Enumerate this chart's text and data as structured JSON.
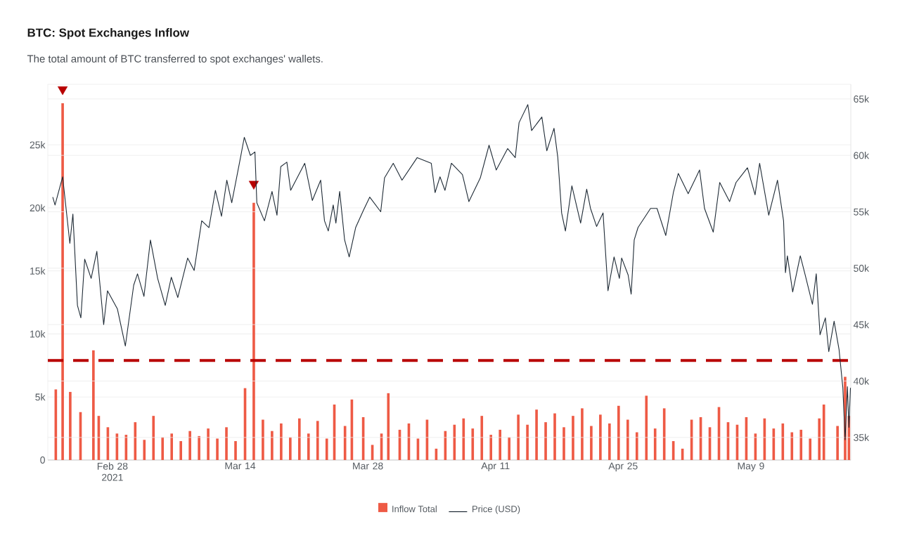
{
  "chart_data": {
    "type": "line",
    "title": "BTC: Spot Exchanges Inflow",
    "subtitle": "The total amount of BTC transferred to spot exchanges' wallets.",
    "xlim": [
      "2021-02-20T22:00",
      "2021-05-19T23:00"
    ],
    "xticks": [
      {
        "value": "2021-02-28T00:00",
        "label": "Feb 28 2021"
      },
      {
        "value": "2021-03-14T00:00",
        "label": "Mar 14"
      },
      {
        "value": "2021-03-28T00:00",
        "label": "Mar 28"
      },
      {
        "value": "2021-04-11T00:00",
        "label": "Apr 11"
      },
      {
        "value": "2021-04-25T00:00",
        "label": "Apr 25"
      },
      {
        "value": "2021-05-09T00:00",
        "label": "May 9"
      }
    ],
    "ylim": [
      0,
      29800
    ],
    "yticks": [
      0,
      {
        "value": 5000,
        "label": "5k"
      },
      {
        "value": 10000,
        "label": "10k"
      },
      {
        "value": 15000,
        "label": "15k"
      },
      {
        "value": 20000,
        "label": "20k"
      },
      {
        "value": 25000,
        "label": "25k"
      }
    ],
    "y2lim": [
      33000,
      66300
    ],
    "y2ticks": [
      {
        "value": 35000,
        "label": "35k"
      },
      {
        "value": 40000,
        "label": "40k"
      },
      {
        "value": 45000,
        "label": "45k"
      },
      {
        "value": 50000,
        "label": "50k"
      },
      {
        "value": 55000,
        "label": "55k"
      },
      {
        "value": 60000,
        "label": "60k"
      },
      {
        "value": 65000,
        "label": "65k"
      }
    ],
    "grid": "y",
    "legend": "bottom",
    "ref_lines": [
      {
        "axis": "y",
        "value": 7900,
        "color": "#b80000",
        "line_style": "dashed"
      }
    ],
    "series": [
      {
        "name": "Inflow Total",
        "type": "bar",
        "color": "#ee5a45",
        "x": [
          "2021-02-21T19:00",
          "2021-02-22T13:00",
          "2021-02-23T09:00",
          "2021-02-24T12:00",
          "2021-02-25T22:00",
          "2021-02-26T12:00",
          "2021-02-27T12:00",
          "2021-02-28T12:00",
          "2021-03-01T12:00",
          "2021-03-02T12:00",
          "2021-03-03T12:00",
          "2021-03-04T12:00",
          "2021-03-05T12:00",
          "2021-03-06T12:00",
          "2021-03-07T12:00",
          "2021-03-08T12:00",
          "2021-03-09T12:00",
          "2021-03-10T12:00",
          "2021-03-11T12:00",
          "2021-03-12T12:00",
          "2021-03-13T12:00",
          "2021-03-14T13:00",
          "2021-03-15T12:00",
          "2021-03-16T12:00",
          "2021-03-17T12:00",
          "2021-03-18T12:00",
          "2021-03-19T12:00",
          "2021-03-20T12:00",
          "2021-03-21T12:00",
          "2021-03-22T12:00",
          "2021-03-23T12:00",
          "2021-03-24T08:00",
          "2021-03-25T12:00",
          "2021-03-26T06:00",
          "2021-03-27T12:00",
          "2021-03-28T12:00",
          "2021-03-29T12:00",
          "2021-03-30T06:00",
          "2021-03-31T12:00",
          "2021-04-01T12:00",
          "2021-04-02T12:00",
          "2021-04-03T12:00",
          "2021-04-04T12:00",
          "2021-04-05T12:00",
          "2021-04-06T12:00",
          "2021-04-07T12:00",
          "2021-04-08T12:00",
          "2021-04-09T12:00",
          "2021-04-10T12:00",
          "2021-04-11T12:00",
          "2021-04-12T12:00",
          "2021-04-13T12:00",
          "2021-04-14T12:00",
          "2021-04-15T12:00",
          "2021-04-16T12:00",
          "2021-04-17T12:00",
          "2021-04-18T12:00",
          "2021-04-19T12:00",
          "2021-04-20T12:00",
          "2021-04-21T12:00",
          "2021-04-22T12:00",
          "2021-04-23T12:00",
          "2021-04-24T12:00",
          "2021-04-25T12:00",
          "2021-04-26T12:00",
          "2021-04-27T13:00",
          "2021-04-28T12:00",
          "2021-04-29T12:00",
          "2021-04-30T12:00",
          "2021-05-01T12:00",
          "2021-05-02T12:00",
          "2021-05-03T12:00",
          "2021-05-04T12:00",
          "2021-05-05T12:00",
          "2021-05-06T12:00",
          "2021-05-07T12:00",
          "2021-05-08T12:00",
          "2021-05-09T12:00",
          "2021-05-10T12:00",
          "2021-05-11T12:00",
          "2021-05-12T12:00",
          "2021-05-13T12:00",
          "2021-05-14T12:00",
          "2021-05-15T12:00",
          "2021-05-16T12:00",
          "2021-05-17T00:00",
          "2021-05-18T12:00",
          "2021-05-19T08:00",
          "2021-05-19T18:00"
        ],
        "values": [
          5600,
          28300,
          5400,
          3800,
          8700,
          3500,
          2600,
          2100,
          2000,
          3000,
          1600,
          3500,
          1800,
          2100,
          1500,
          2300,
          1900,
          2500,
          1700,
          2600,
          1500,
          5700,
          20400,
          3200,
          2300,
          2900,
          1800,
          3300,
          2100,
          3100,
          1700,
          4400,
          2700,
          4800,
          3400,
          1200,
          2100,
          5300,
          2400,
          2900,
          1700,
          3200,
          900,
          2300,
          2800,
          3300,
          2500,
          3500,
          2000,
          2400,
          1800,
          3600,
          2800,
          4000,
          3000,
          3700,
          2600,
          3500,
          4100,
          2700,
          3600,
          2900,
          4300,
          3200,
          2200,
          5100,
          2500,
          4100,
          1500,
          900,
          3200,
          3400,
          2600,
          4200,
          3000,
          2800,
          3400,
          2100,
          3300,
          2500,
          2900,
          2200,
          2400,
          1700,
          3300,
          4400,
          2700,
          6600,
          3500
        ]
      },
      {
        "name": "Price (USD)",
        "axis": "y2",
        "color": "#1e2a35",
        "x": [
          "2021-02-21T11:00",
          "2021-02-21T17:00",
          "2021-02-22T13:00",
          "2021-02-23T08:00",
          "2021-02-23T16:00",
          "2021-02-24T04:00",
          "2021-02-24T13:00",
          "2021-02-24T23:00",
          "2021-02-25T16:00",
          "2021-02-26T07:00",
          "2021-02-27T01:00",
          "2021-02-27T11:00",
          "2021-02-28T13:00",
          "2021-03-01T10:00",
          "2021-03-02T08:00",
          "2021-03-02T18:00",
          "2021-03-03T11:00",
          "2021-03-04T04:00",
          "2021-03-04T23:00",
          "2021-03-05T19:00",
          "2021-03-06T11:00",
          "2021-03-07T04:00",
          "2021-03-08T06:00",
          "2021-03-08T23:00",
          "2021-03-09T19:00",
          "2021-03-10T14:00",
          "2021-03-11T07:00",
          "2021-03-11T23:00",
          "2021-03-12T13:00",
          "2021-03-13T02:00",
          "2021-03-14T01:00",
          "2021-03-14T11:00",
          "2021-03-15T03:00",
          "2021-03-15T15:00",
          "2021-03-15T20:00",
          "2021-03-16T16:00",
          "2021-03-17T12:00",
          "2021-03-18T01:00",
          "2021-03-18T11:00",
          "2021-03-19T03:00",
          "2021-03-19T13:00",
          "2021-03-21T02:00",
          "2021-03-21T22:00",
          "2021-03-22T20:00",
          "2021-03-23T06:00",
          "2021-03-23T16:00",
          "2021-03-24T05:00",
          "2021-03-24T12:00",
          "2021-03-24T22:00",
          "2021-03-25T11:00",
          "2021-03-25T23:00",
          "2021-03-26T16:00",
          "2021-03-27T12:00",
          "2021-03-28T05:00",
          "2021-03-29T10:00",
          "2021-03-29T20:00",
          "2021-03-30T19:00",
          "2021-03-31T18:00",
          "2021-04-02T10:00",
          "2021-04-03T23:00",
          "2021-04-04T09:00",
          "2021-04-04T22:00",
          "2021-04-05T11:00",
          "2021-04-06T04:00",
          "2021-04-07T09:00",
          "2021-04-08T02:00",
          "2021-04-09T08:00",
          "2021-04-10T07:00",
          "2021-04-11T02:00",
          "2021-04-12T08:00",
          "2021-04-13T04:00",
          "2021-04-13T14:00",
          "2021-04-14T13:00",
          "2021-04-14T23:00",
          "2021-04-16T02:00",
          "2021-04-16T15:00",
          "2021-04-17T10:00",
          "2021-04-17T20:00",
          "2021-04-18T06:00",
          "2021-04-18T16:00",
          "2021-04-19T09:00",
          "2021-04-20T08:00",
          "2021-04-21T00:00",
          "2021-04-21T10:00",
          "2021-04-22T02:00",
          "2021-04-22T19:00",
          "2021-04-23T08:00",
          "2021-04-24T00:00",
          "2021-04-24T14:00",
          "2021-04-24T20:00",
          "2021-04-25T13:00",
          "2021-04-25T21:00",
          "2021-04-26T05:00",
          "2021-04-26T15:00",
          "2021-04-28T00:00",
          "2021-04-28T17:00",
          "2021-04-29T16:00",
          "2021-04-30T12:00",
          "2021-05-01T01:00",
          "2021-05-02T03:00",
          "2021-05-03T09:00",
          "2021-05-03T22:00",
          "2021-05-04T21:00",
          "2021-05-05T14:00",
          "2021-05-06T16:00",
          "2021-05-07T09:00",
          "2021-05-08T15:00",
          "2021-05-09T11:00",
          "2021-05-09T23:00",
          "2021-05-10T23:00",
          "2021-05-11T22:00",
          "2021-05-12T14:00",
          "2021-05-12T19:00",
          "2021-05-13T00:00",
          "2021-05-13T14:00",
          "2021-05-14T10:00",
          "2021-05-14T23:00",
          "2021-05-15T18:00",
          "2021-05-16T04:00",
          "2021-05-16T14:00",
          "2021-05-17T04:00",
          "2021-05-17T13:00",
          "2021-05-18T03:00",
          "2021-05-18T16:00",
          "2021-05-19T02:00",
          "2021-05-19T08:00",
          "2021-05-19T14:00",
          "2021-05-19T18:00",
          "2021-05-19T22:00"
        ],
        "values": [
          56300,
          55600,
          58100,
          52200,
          54800,
          46700,
          45600,
          50800,
          49100,
          51500,
          45000,
          48000,
          46400,
          43100,
          48500,
          49500,
          47500,
          52500,
          49100,
          46700,
          49200,
          47400,
          50900,
          49800,
          54200,
          53600,
          56900,
          54600,
          57800,
          55800,
          59800,
          61600,
          60000,
          60300,
          55800,
          54200,
          56800,
          54700,
          59000,
          59400,
          56900,
          59300,
          56000,
          57800,
          54200,
          53300,
          55600,
          54000,
          56800,
          52500,
          51000,
          53600,
          55100,
          56300,
          55000,
          58000,
          59300,
          57800,
          59800,
          59300,
          56700,
          58100,
          56900,
          59300,
          58300,
          55900,
          58000,
          60900,
          58700,
          60600,
          59800,
          62900,
          64500,
          62200,
          63400,
          60400,
          62400,
          59800,
          54900,
          53300,
          57300,
          54000,
          57000,
          55300,
          53700,
          54900,
          48000,
          51000,
          49100,
          50900,
          49400,
          47700,
          52500,
          53600,
          55300,
          55300,
          52900,
          56700,
          58400,
          56600,
          58700,
          55300,
          53200,
          57600,
          55900,
          57600,
          58900,
          56500,
          59300,
          54700,
          57800,
          54200,
          49600,
          51100,
          47900,
          51100,
          49400,
          46800,
          49500,
          44100,
          45600,
          42600,
          45300,
          42800,
          39400,
          34800,
          39500,
          35900,
          39400
        ]
      },
      {
        "type": "scatter",
        "marker": "triangle",
        "color": "#b80000",
        "x": [
          "2021-02-22T13:00",
          "2021-03-15T12:00"
        ],
        "values": [
          29400,
          21900
        ]
      }
    ]
  }
}
